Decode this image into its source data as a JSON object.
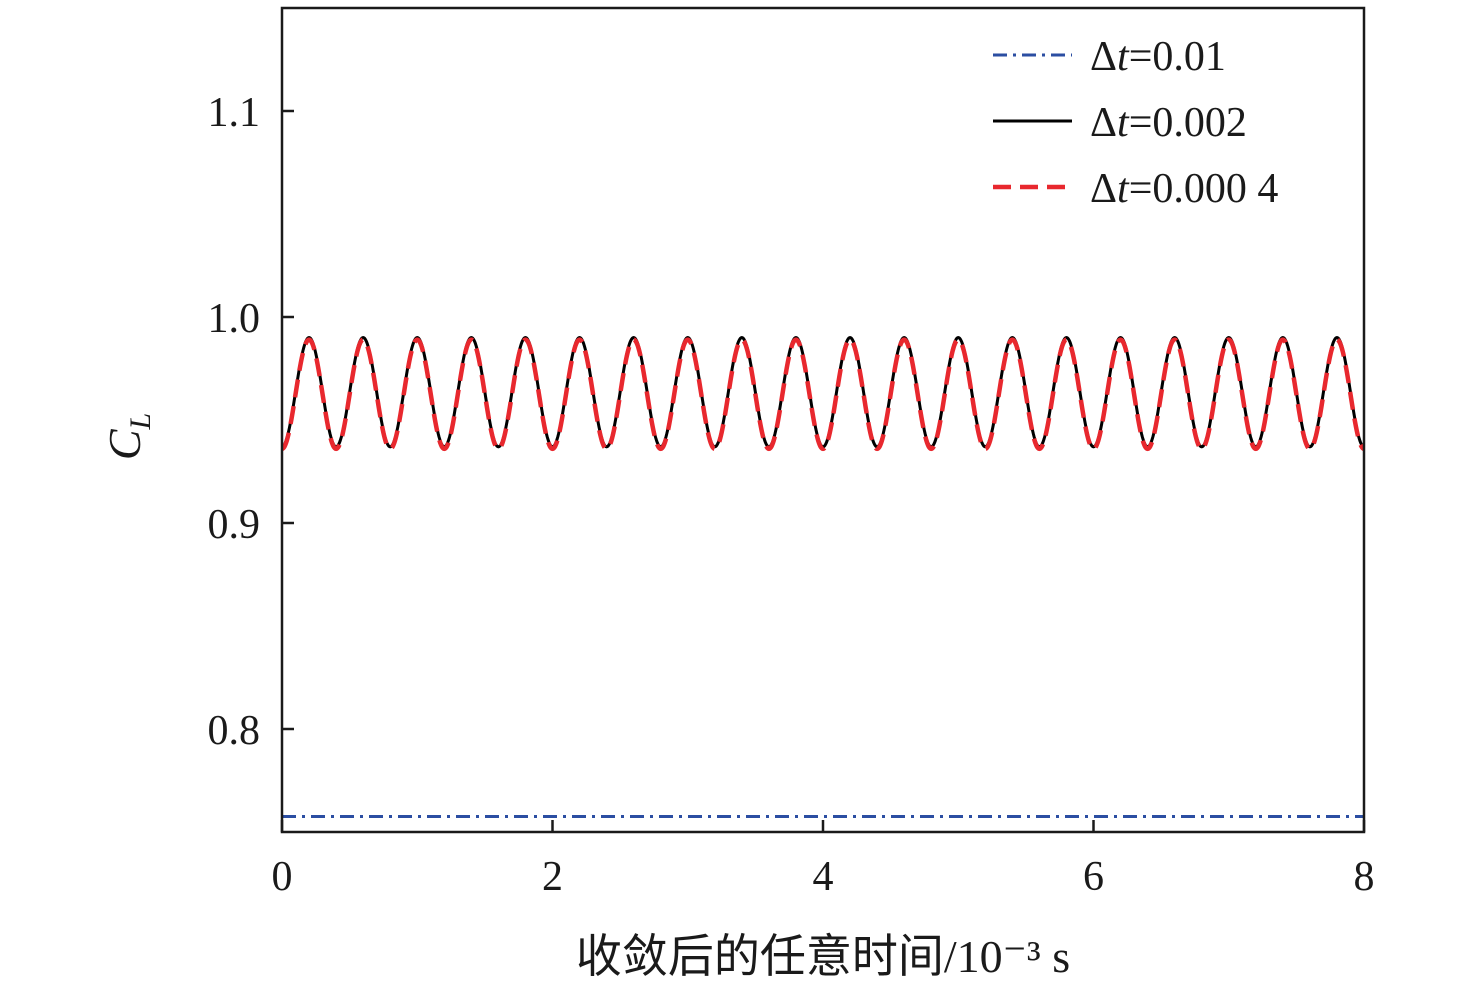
{
  "chart_data": {
    "type": "line",
    "xlabel": "收敛后的任意时间/10⁻³ s",
    "ylabel_main": "C",
    "ylabel_sub": "L",
    "xlim": [
      0,
      8
    ],
    "ylim": [
      0.75,
      1.15
    ],
    "xticks": [
      0,
      2,
      4,
      6,
      8
    ],
    "xtick_labels": [
      "0",
      "2",
      "4",
      "6",
      "8"
    ],
    "yticks": [
      0.8,
      0.9,
      1.0,
      1.1
    ],
    "ytick_labels": [
      "0.8",
      "0.9",
      "1.0",
      "1.1"
    ],
    "grid": false,
    "legend_position": "top-right",
    "series": [
      {
        "legend_prefix": "Δ",
        "legend_var": "t",
        "legend_value": "=0.01",
        "color": "#2b4ea2",
        "dash": "dashdot",
        "kind": "constant",
        "value": 0.7575,
        "x_range": [
          0,
          8
        ]
      },
      {
        "legend_prefix": "Δ",
        "legend_var": "t",
        "legend_value": "=0.002",
        "color": "#000000",
        "dash": "solid",
        "kind": "sine",
        "mean": 0.9635,
        "amplitude": 0.0265,
        "period": 0.4,
        "first_peak": 0.2,
        "x_range": [
          0,
          8
        ]
      },
      {
        "legend_prefix": "Δ",
        "legend_var": "t",
        "legend_value": "=0.000 4",
        "color": "#e8282e",
        "dash": "dashed",
        "kind": "sine",
        "mean": 0.9625,
        "amplitude": 0.0265,
        "period": 0.4,
        "first_peak": 0.2,
        "x_range": [
          0,
          8
        ]
      }
    ]
  }
}
